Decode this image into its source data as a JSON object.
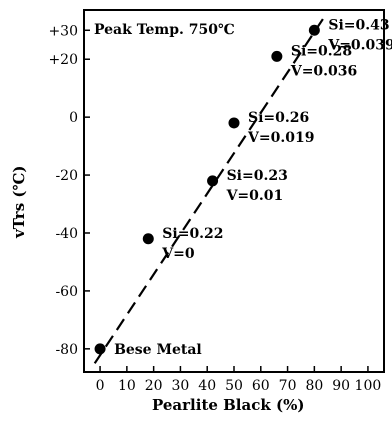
{
  "chart_data": {
    "type": "scatter",
    "annotation_title": "Peak Temp. 750℃",
    "xlabel": "Pearlite Black (%)",
    "ylabel": "vTrs (℃)",
    "xlim": [
      -6,
      106
    ],
    "ylim": [
      -88,
      37
    ],
    "x_ticks": [
      "0",
      "10",
      "20",
      "30",
      "40",
      "50",
      "60",
      "70",
      "80",
      "90",
      "100"
    ],
    "y_ticks": [
      "+30",
      "+20",
      "0",
      "-20",
      "-40",
      "-60",
      "-80"
    ],
    "grid": false,
    "trend_line": {
      "style": "dashed",
      "from": [
        -2,
        -85
      ],
      "to": [
        84,
        35
      ]
    },
    "points": [
      {
        "x": 0,
        "y": -80,
        "label_lines": [
          "Bese Metal"
        ]
      },
      {
        "x": 18,
        "y": -42,
        "label_lines": [
          "Si=0.22",
          "V=0"
        ]
      },
      {
        "x": 42,
        "y": -22,
        "label_lines": [
          "Si=0.23",
          "V=0.01"
        ]
      },
      {
        "x": 50,
        "y": -2,
        "label_lines": [
          "Si=0.26",
          "V=0.019"
        ]
      },
      {
        "x": 66,
        "y": 21,
        "label_lines": [
          "Si=0.28",
          "V=0.036"
        ]
      },
      {
        "x": 80,
        "y": 30,
        "label_lines": [
          "Si=0.43",
          "V=0.039"
        ]
      }
    ]
  }
}
